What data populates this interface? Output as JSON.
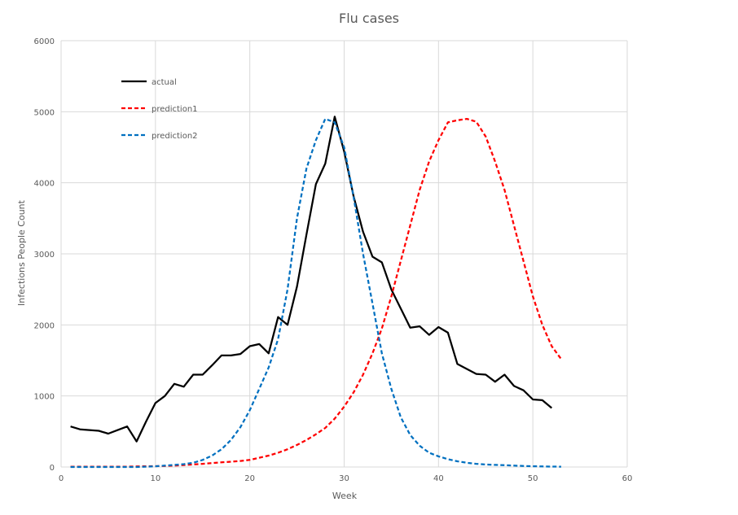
{
  "chart_data": {
    "type": "line",
    "title": "Flu cases",
    "xlabel": "Week",
    "ylabel": "Infections People Count",
    "xlim": [
      0,
      60
    ],
    "ylim": [
      0,
      6000
    ],
    "x_ticks": [
      "0",
      "10",
      "20",
      "30",
      "40",
      "50",
      "60"
    ],
    "y_ticks": [
      "0",
      "1000",
      "2000",
      "3000",
      "4000",
      "5000",
      "6000"
    ],
    "grid": true,
    "legend_position": "top-left",
    "series": [
      {
        "name": "actual",
        "color": "#000000",
        "dash": "solid",
        "x": [
          1,
          2,
          3,
          4,
          5,
          6,
          7,
          8,
          9,
          10,
          11,
          12,
          13,
          14,
          15,
          16,
          17,
          18,
          19,
          20,
          21,
          22,
          23,
          24,
          25,
          26,
          27,
          28,
          29,
          30,
          31,
          32,
          33,
          34,
          35,
          36,
          37,
          38,
          39,
          40,
          41,
          42,
          43,
          44,
          45,
          46,
          47,
          48,
          49,
          50,
          51,
          52
        ],
        "y": [
          570,
          530,
          520,
          510,
          470,
          520,
          570,
          360,
          640,
          900,
          1000,
          1170,
          1130,
          1300,
          1300,
          1430,
          1570,
          1570,
          1590,
          1700,
          1730,
          1600,
          2110,
          2000,
          2540,
          3270,
          3980,
          4270,
          4930,
          4440,
          3810,
          3310,
          2960,
          2880,
          2500,
          2230,
          1960,
          1980,
          1860,
          1970,
          1890,
          1450,
          1380,
          1310,
          1300,
          1200,
          1300,
          1140,
          1080,
          950,
          940,
          830
        ]
      },
      {
        "name": "prediction1",
        "color": "#ff0000",
        "dash": "dashed",
        "x": [
          1,
          2,
          3,
          4,
          5,
          6,
          7,
          8,
          9,
          10,
          11,
          12,
          13,
          14,
          15,
          16,
          17,
          18,
          19,
          20,
          21,
          22,
          23,
          24,
          25,
          26,
          27,
          28,
          29,
          30,
          31,
          32,
          33,
          34,
          35,
          36,
          37,
          38,
          39,
          40,
          41,
          42,
          43,
          44,
          45,
          46,
          47,
          48,
          49,
          50,
          51,
          52,
          53
        ],
        "y": [
          5,
          5,
          5,
          5,
          5,
          5,
          5,
          8,
          10,
          12,
          15,
          20,
          28,
          35,
          45,
          55,
          65,
          75,
          85,
          100,
          130,
          160,
          200,
          250,
          310,
          380,
          460,
          550,
          680,
          850,
          1050,
          1300,
          1600,
          1950,
          2400,
          2900,
          3400,
          3900,
          4300,
          4600,
          4850,
          4880,
          4900,
          4860,
          4650,
          4300,
          3900,
          3400,
          2900,
          2400,
          2000,
          1700,
          1520
        ]
      },
      {
        "name": "prediction2",
        "color": "#0070c0",
        "dash": "dashed",
        "x": [
          1,
          2,
          3,
          4,
          5,
          6,
          7,
          8,
          9,
          10,
          11,
          12,
          13,
          14,
          15,
          16,
          17,
          18,
          19,
          20,
          21,
          22,
          23,
          24,
          25,
          26,
          27,
          28,
          29,
          30,
          31,
          32,
          33,
          34,
          35,
          36,
          37,
          38,
          39,
          40,
          41,
          42,
          43,
          44,
          45,
          46,
          47,
          48,
          49,
          50,
          51,
          52,
          53
        ],
        "y": [
          0,
          0,
          0,
          0,
          0,
          0,
          0,
          0,
          5,
          10,
          20,
          30,
          40,
          60,
          100,
          160,
          250,
          380,
          560,
          800,
          1100,
          1400,
          1800,
          2500,
          3500,
          4200,
          4600,
          4900,
          4850,
          4500,
          3800,
          3000,
          2300,
          1600,
          1100,
          700,
          450,
          300,
          200,
          150,
          110,
          80,
          60,
          45,
          35,
          30,
          25,
          20,
          15,
          10,
          8,
          6,
          5
        ]
      }
    ]
  }
}
